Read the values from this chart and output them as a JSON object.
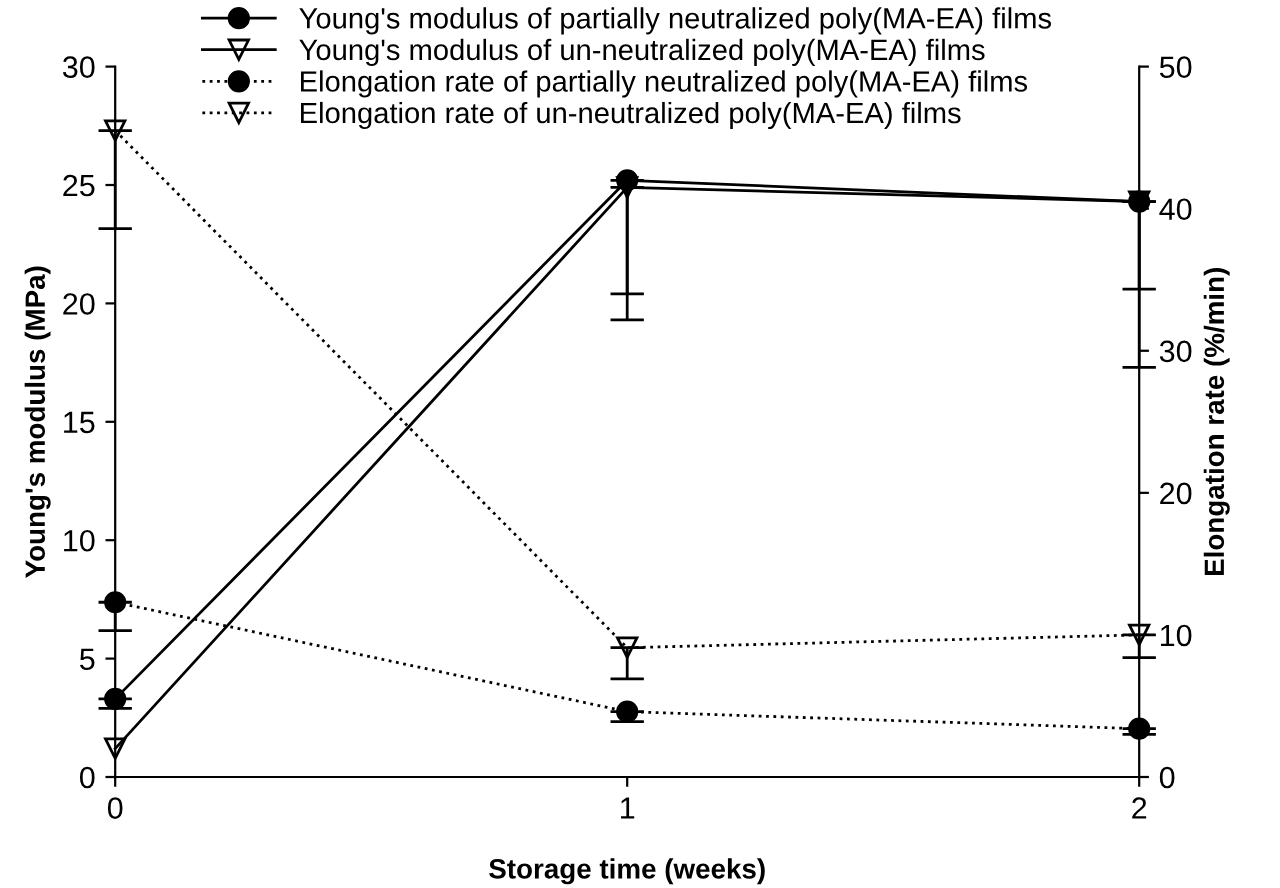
{
  "chart_data": {
    "type": "line",
    "xlabel": "Storage time (weeks)",
    "ylabel": "Young's modulus (MPa)",
    "y2label": "Elongation rate (%/min)",
    "x": [
      0,
      1,
      2
    ],
    "xlim": [
      0,
      2
    ],
    "xticks": [
      0,
      1,
      2
    ],
    "ylim": [
      0,
      30
    ],
    "yticks": [
      0,
      5,
      10,
      15,
      20,
      25,
      30
    ],
    "y2lim": [
      0,
      50
    ],
    "y2ticks": [
      0,
      10,
      20,
      30,
      40,
      50
    ],
    "grid": false,
    "legend": "top",
    "series": [
      {
        "name": "Young's modulus of partially neutralized poly(MA-EA) films",
        "color": "#000000",
        "marker": "circle",
        "line_style": "solid",
        "values": [
          3.3,
          25.2,
          24.3
        ],
        "errors": [
          [
            2.9,
            3.3
          ],
          [
            20.4,
            25.2
          ],
          [
            20.6,
            24.3
          ]
        ]
      },
      {
        "name": "Young's modulus of un-neutralized poly(MA-EA) films",
        "color": "#000000",
        "marker": "triangle",
        "line_style": "solid",
        "values": [
          1.2,
          24.9,
          24.3
        ],
        "errors": [
          null,
          [
            19.3,
            24.9
          ],
          [
            17.3,
            24.3
          ]
        ]
      },
      {
        "name": "Elongation rate of partially neutralized poly(MA-EA) films",
        "color": "#000000",
        "marker": "circle",
        "line_style": "dotted",
        "axis": "y2",
        "values": [
          12.3,
          4.6,
          3.4
        ],
        "errors": [
          [
            10.3,
            12.3
          ],
          [
            3.9,
            4.6
          ],
          [
            3.0,
            3.4
          ]
        ]
      },
      {
        "name": "Elongation rate of un-neutralized poly(MA-EA) films",
        "color": "#000000",
        "marker": "triangle",
        "line_style": "dotted",
        "axis": "y2",
        "values": [
          45.5,
          9.1,
          10.0
        ],
        "errors": [
          [
            38.6,
            45.5
          ],
          [
            6.9,
            9.1
          ],
          [
            8.4,
            10.0
          ]
        ]
      }
    ]
  }
}
